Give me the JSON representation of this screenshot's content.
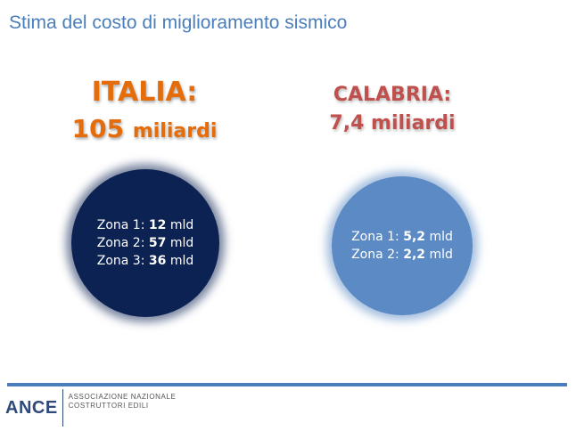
{
  "title": "Stima del costo di miglioramento sismico",
  "italia": {
    "heading": "ITALIA:",
    "amount": "105",
    "unit": "miliardi",
    "zones": [
      {
        "label": "Zona 1:",
        "value": "12",
        "unit": "mld"
      },
      {
        "label": "Zona 2:",
        "value": "57",
        "unit": "mld"
      },
      {
        "label": "Zona 3:",
        "value": "36",
        "unit": "mld"
      }
    ]
  },
  "calabria": {
    "heading": "CALABRIA:",
    "amount_line": "7,4 miliardi",
    "zones": [
      {
        "label": "Zona 1:",
        "value": "5,2",
        "unit": "mld"
      },
      {
        "label": "Zona 2:",
        "value": "2,2",
        "unit": "mld"
      }
    ]
  },
  "logo": {
    "name": "ANCE",
    "line1": "ASSOCIAZIONE NAZIONALE",
    "line2": "COSTRUTTORI EDILI"
  },
  "colors": {
    "title": "#4a7ebb",
    "italia_text": "#e46c0a",
    "calabria_text": "#c0504d",
    "italia_circle": "#0c2253",
    "calabria_circle": "#5b8ac4",
    "footer_bar": "#4a7ebb"
  }
}
